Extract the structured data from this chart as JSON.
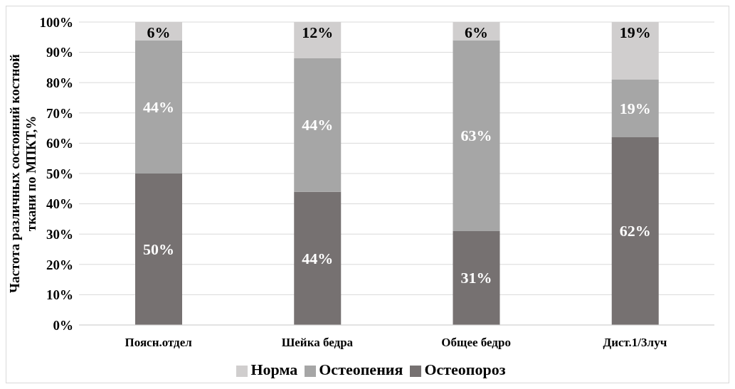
{
  "chart_data": {
    "type": "bar",
    "stacked": true,
    "ylabel": "Частота различных состояний костной ткани по МПКТ,%",
    "categories": [
      "Поясн.отдел",
      "Шейка бедра",
      "Общее бедро",
      "Дист.1/3луч"
    ],
    "series": [
      {
        "name": "Остеопороз",
        "color": "#767171",
        "values": [
          50,
          44,
          31,
          62
        ],
        "value_labels": [
          "50%",
          "44%",
          "31%",
          "62%"
        ]
      },
      {
        "name": "Остеопения",
        "color": "#a6a6a6",
        "values": [
          44,
          44,
          63,
          19
        ],
        "value_labels": [
          "44%",
          "44%",
          "63%",
          "19%"
        ]
      },
      {
        "name": "Норма",
        "color": "#d0cece",
        "values": [
          6,
          12,
          6,
          19
        ],
        "value_labels": [
          "6%",
          "12%",
          "6%",
          "19%"
        ]
      }
    ],
    "ylim": [
      0,
      100
    ],
    "yticks": [
      {
        "value": 0,
        "label": "0%"
      },
      {
        "value": 10,
        "label": "10%"
      },
      {
        "value": 20,
        "label": "20%"
      },
      {
        "value": 30,
        "label": "30%"
      },
      {
        "value": 40,
        "label": "40%"
      },
      {
        "value": 50,
        "label": "50%"
      },
      {
        "value": 60,
        "label": "60%"
      },
      {
        "value": 70,
        "label": "70%"
      },
      {
        "value": 80,
        "label": "80%"
      },
      {
        "value": 90,
        "label": "90%"
      },
      {
        "value": 100,
        "label": "100%"
      }
    ],
    "grid": "y",
    "legend": "bottom"
  }
}
